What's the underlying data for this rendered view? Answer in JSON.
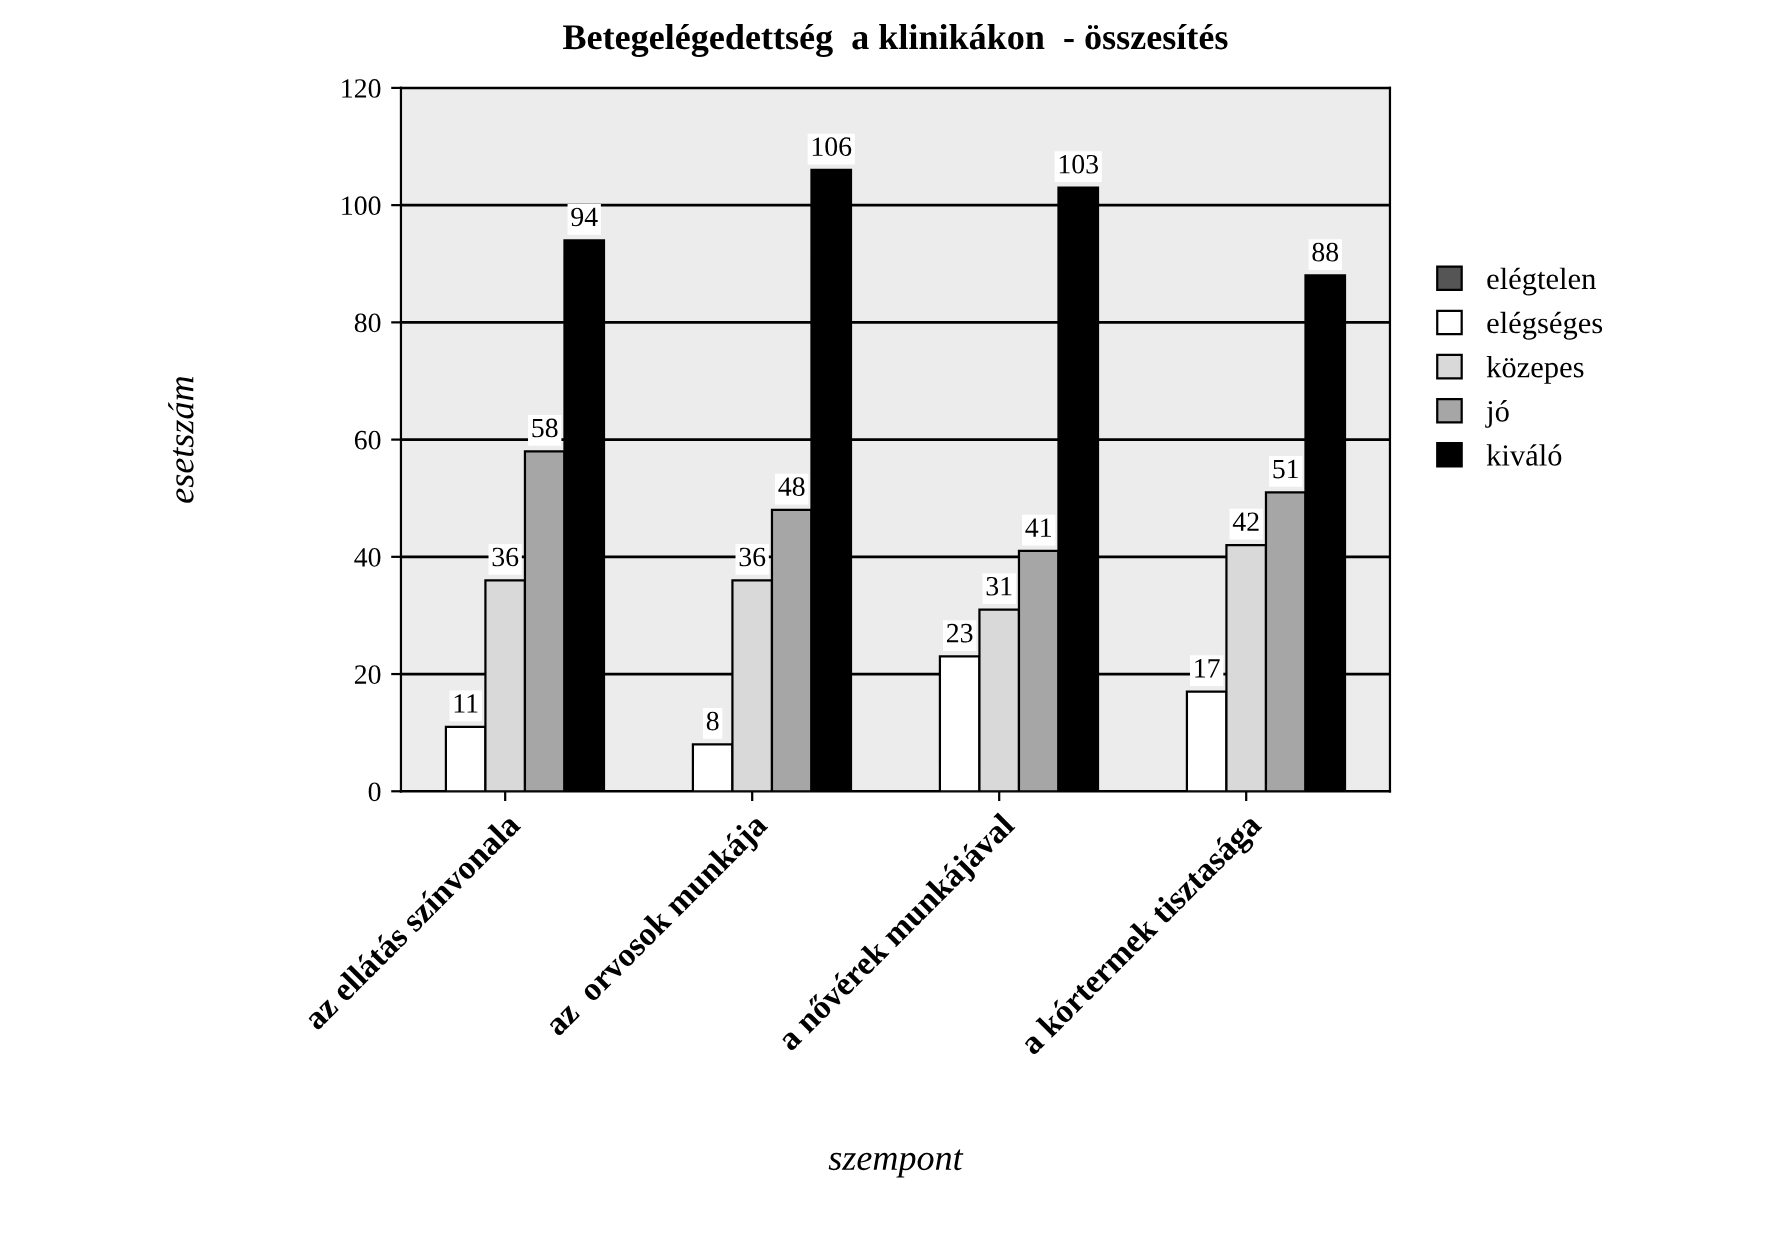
{
  "chart_data": {
    "type": "bar",
    "title": "Betegelégedettség  a klinikákon  - összesítés",
    "categories": [
      "az ellátás színvonala",
      "az  orvosok munkája",
      "a nővérek munkájával",
      "a kórtermek tisztasága"
    ],
    "series": [
      {
        "name": "elégtelen",
        "color": "#555555",
        "values": [
          null,
          null,
          null,
          null
        ],
        "value_labels": [
          null,
          null,
          null,
          null
        ]
      },
      {
        "name": "elégséges",
        "color": "#ffffff",
        "values": [
          11,
          8,
          23,
          17
        ],
        "value_labels": [
          "11",
          "8",
          "23",
          "17"
        ]
      },
      {
        "name": "közepes",
        "color": "#d9d9d9",
        "values": [
          36,
          36,
          31,
          42
        ],
        "value_labels": [
          "36",
          "36",
          "31",
          "42"
        ]
      },
      {
        "name": "jó",
        "color": "#a6a6a6",
        "values": [
          58,
          48,
          41,
          51
        ],
        "value_labels": [
          "58",
          "48",
          "41",
          "51"
        ]
      },
      {
        "name": "kiváló",
        "color": "#000000",
        "values": [
          94,
          106,
          103,
          88
        ],
        "value_labels": [
          "94",
          "106",
          "103",
          "88"
        ]
      }
    ],
    "xlabel": "szempont",
    "ylabel": "esetszám",
    "ylim": [
      0,
      120
    ],
    "yticks": [
      0,
      20,
      40,
      60,
      80,
      100,
      120
    ],
    "grid": "y",
    "legend": "right"
  }
}
